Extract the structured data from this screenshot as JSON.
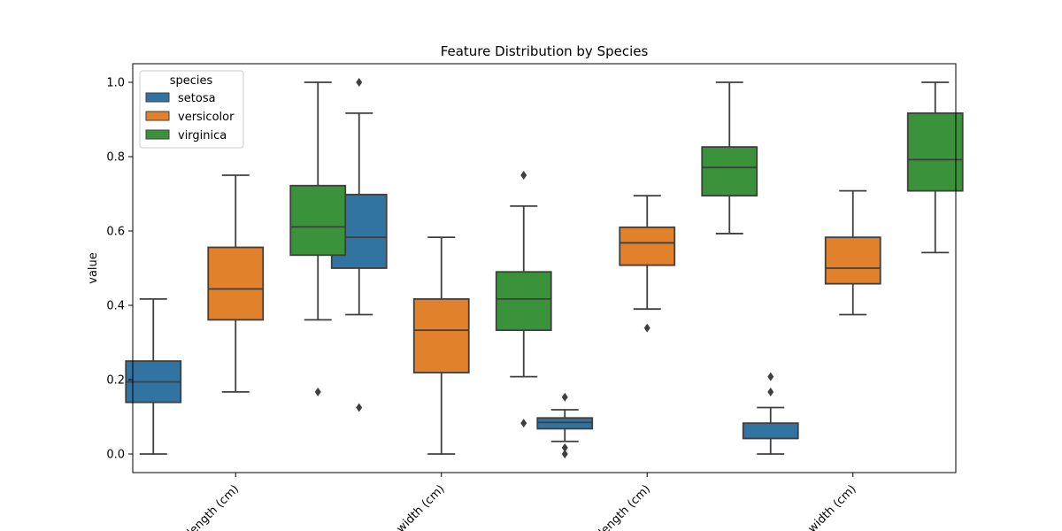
{
  "chart_data": {
    "type": "box",
    "title": "Feature Distribution by Species",
    "xlabel": "",
    "ylabel": "value",
    "ylim": [
      -0.05,
      1.05
    ],
    "y_ticks": [
      0.0,
      0.2,
      0.4,
      0.6,
      0.8,
      1.0
    ],
    "y_tick_labels": [
      "0.0",
      "0.2",
      "0.4",
      "0.6",
      "0.8",
      "1.0"
    ],
    "grid": false,
    "categories": [
      "sepal length (cm)",
      "sepal width (cm)",
      "petal length (cm)",
      "petal width (cm)"
    ],
    "category_tick_labels": [
      "length (cm)",
      "width (cm)",
      "length (cm)",
      "width (cm)"
    ],
    "legend": {
      "title": "species",
      "placement": "top-left"
    },
    "series": [
      {
        "name": "setosa",
        "color": "#3274a1",
        "boxes": [
          {
            "whisker_low": 0.0,
            "q1": 0.139,
            "median": 0.194,
            "q3": 0.25,
            "whisker_high": 0.417,
            "outliers": []
          },
          {
            "whisker_low": 0.375,
            "q1": 0.5,
            "median": 0.583,
            "q3": 0.698,
            "whisker_high": 0.917,
            "outliers": [
              1.0,
              0.125
            ]
          },
          {
            "whisker_low": 0.034,
            "q1": 0.068,
            "median": 0.085,
            "q3": 0.097,
            "whisker_high": 0.119,
            "outliers": [
              0.153,
              0.017,
              0.0
            ]
          },
          {
            "whisker_low": 0.0,
            "q1": 0.042,
            "median": 0.042,
            "q3": 0.083,
            "whisker_high": 0.125,
            "outliers": [
              0.208,
              0.167
            ]
          }
        ]
      },
      {
        "name": "versicolor",
        "color": "#e1812c",
        "boxes": [
          {
            "whisker_low": 0.167,
            "q1": 0.361,
            "median": 0.444,
            "q3": 0.556,
            "whisker_high": 0.75,
            "outliers": []
          },
          {
            "whisker_low": 0.0,
            "q1": 0.219,
            "median": 0.333,
            "q3": 0.417,
            "whisker_high": 0.583,
            "outliers": []
          },
          {
            "whisker_low": 0.39,
            "q1": 0.508,
            "median": 0.568,
            "q3": 0.61,
            "whisker_high": 0.695,
            "outliers": [
              0.339
            ]
          },
          {
            "whisker_low": 0.375,
            "q1": 0.458,
            "median": 0.5,
            "q3": 0.583,
            "whisker_high": 0.708,
            "outliers": []
          }
        ]
      },
      {
        "name": "virginica",
        "color": "#3a923a",
        "boxes": [
          {
            "whisker_low": 0.361,
            "q1": 0.535,
            "median": 0.611,
            "q3": 0.722,
            "whisker_high": 1.0,
            "outliers": [
              0.167
            ]
          },
          {
            "whisker_low": 0.208,
            "q1": 0.333,
            "median": 0.417,
            "q3": 0.49,
            "whisker_high": 0.667,
            "outliers": [
              0.75,
              0.083
            ]
          },
          {
            "whisker_low": 0.593,
            "q1": 0.695,
            "median": 0.771,
            "q3": 0.826,
            "whisker_high": 1.0,
            "outliers": []
          },
          {
            "whisker_low": 0.542,
            "q1": 0.708,
            "median": 0.792,
            "q3": 0.917,
            "whisker_high": 1.0,
            "outliers": []
          }
        ]
      }
    ]
  }
}
